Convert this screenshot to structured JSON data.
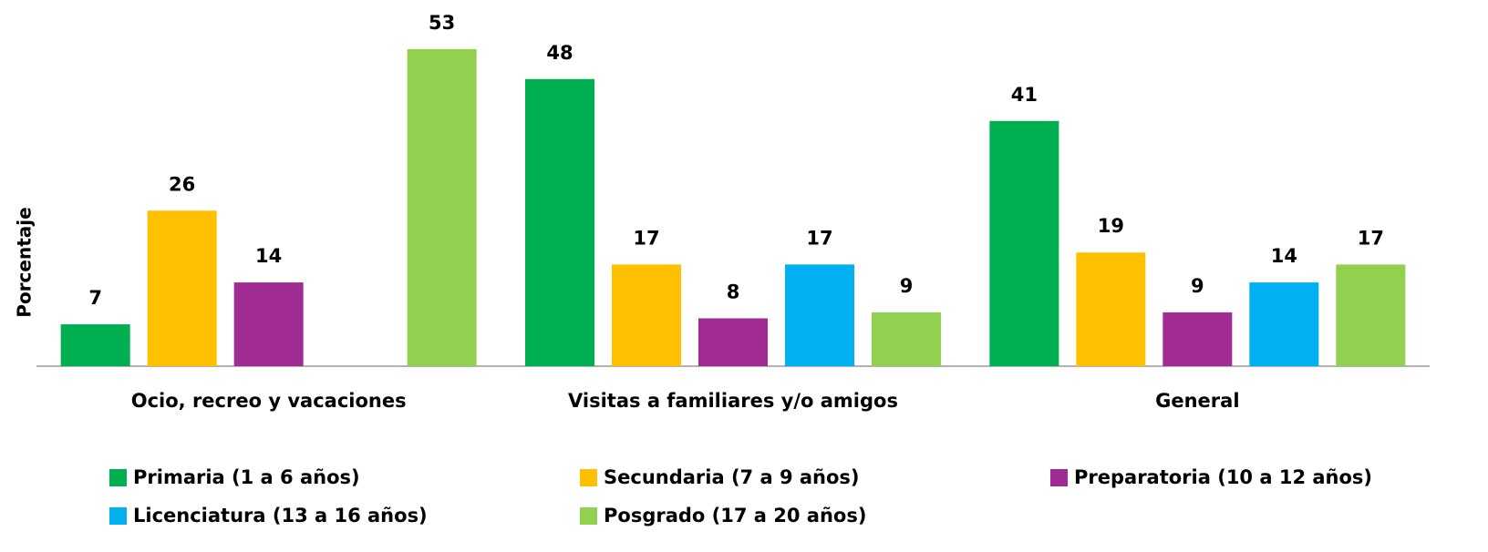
{
  "chart_data": {
    "type": "bar",
    "y_label": "Porcentaje",
    "categories": [
      "Ocio, recreo y vacaciones",
      "Visitas a familiares y/o amigos",
      "General"
    ],
    "series": [
      {
        "name": "Primaria (1 a 6 años)",
        "color": "#00b050",
        "values": [
          7,
          48,
          41
        ]
      },
      {
        "name": "Secundaria (7 a 9 años)",
        "color": "#ffc000",
        "values": [
          26,
          17,
          19
        ]
      },
      {
        "name": "Preparatoria (10 a 12 años)",
        "color": "#a02b93",
        "values": [
          14,
          8,
          9
        ]
      },
      {
        "name": "Licenciatura (13 a 16 años)",
        "color": "#00b0f0",
        "values": [
          null,
          17,
          14
        ]
      },
      {
        "name": "Posgrado (17 a 20 años)",
        "color": "#92d050",
        "values": [
          53,
          9,
          17
        ]
      }
    ],
    "ylim": [
      0,
      60
    ],
    "legend": "bottom"
  }
}
